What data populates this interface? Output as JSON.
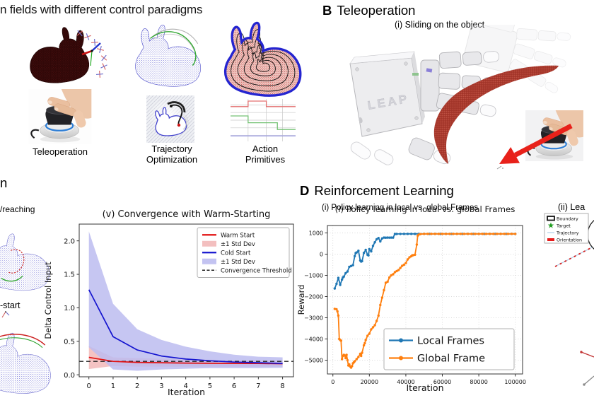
{
  "panel_a": {
    "title": "n fields with different control paradigms",
    "items": [
      {
        "name": "teleoperation",
        "label": "Teleoperation"
      },
      {
        "name": "trajectory-optimization",
        "label": "Trajectory Optimization"
      },
      {
        "name": "action-primitives",
        "label": "Action Primitives"
      }
    ]
  },
  "panel_b": {
    "letter": "B",
    "title": "Teleoperation",
    "caption": "(i) Sliding on the object",
    "device_label": "LEAP"
  },
  "panel_c": {
    "heading_fragment": "n",
    "caption_fragment": "/reaching",
    "warm_start_fragment": "-start"
  },
  "panel_d": {
    "letter": "D",
    "title": "Reinforcement Learning",
    "caption": "(i) Policy learning in local vs. global Frames"
  },
  "panel_d_ii": {
    "title_fragment": "(ii) Lea",
    "legend": [
      {
        "name": "boundary",
        "label": "Boundary"
      },
      {
        "name": "target",
        "label": "Target"
      },
      {
        "name": "trajectory",
        "label": "Trajectory"
      },
      {
        "name": "orientation",
        "label": "Orientation"
      }
    ]
  },
  "colors": {
    "warm_red": "#e21212",
    "warm_band": "#f2b8b8",
    "cold_blue": "#1414cf",
    "cold_band": "#bcbcf0",
    "threshold_black": "#222222",
    "local_blue": "#1f77b4",
    "global_orange": "#ff7f0e",
    "pointcloud_blue": "#4646c8",
    "pointcloud_red": "#c03030",
    "bunny_outline_blue": "#2525d0",
    "arrow_red": "#e8211a",
    "target_green": "#1f9c1f",
    "orientation_red": "#e51c1c",
    "trajectory_lightblue": "#9dc3e0"
  },
  "chart_data": [
    {
      "id": "convergence",
      "type": "line",
      "title": "(v) Convergence with  Warm-Starting",
      "xlabel": "Iteration",
      "ylabel": "Delta Control Input",
      "xlim": [
        -0.4,
        8.45
      ],
      "ylim": [
        -0.03,
        2.25
      ],
      "x": [
        0,
        1,
        2,
        3,
        4,
        5,
        6,
        7,
        8
      ],
      "xticks": [
        0,
        1,
        2,
        3,
        4,
        5,
        6,
        7,
        8
      ],
      "xtick_labels": [
        "0",
        "1",
        "2",
        "3",
        "4",
        "5",
        "6",
        "7",
        "8"
      ],
      "yticks": [
        0,
        0.5,
        1,
        1.5,
        2
      ],
      "ytick_labels": [
        "0.0",
        "0.5",
        "1.0",
        "1.5",
        "2.0"
      ],
      "grid": false,
      "legend_position": "top-right",
      "series": [
        {
          "name": "Warm Start",
          "color": "#e21212",
          "values": [
            0.26,
            0.2,
            0.185,
            0.18,
            0.175,
            0.172,
            0.17,
            0.168,
            0.165
          ]
        },
        {
          "name": "±1 Std Dev",
          "type": "band",
          "color": "#f2b8b8",
          "upper": [
            0.43,
            0.26,
            0.25,
            0.24,
            0.23,
            0.225,
            0.22,
            0.215,
            0.21
          ],
          "lower": [
            0.085,
            0.13,
            0.12,
            0.12,
            0.12,
            0.12,
            0.12,
            0.12,
            0.12
          ]
        },
        {
          "name": "Cold Start",
          "color": "#1414cf",
          "values": [
            1.27,
            0.57,
            0.37,
            0.28,
            0.235,
            0.21,
            0.19,
            0.18,
            0.17
          ]
        },
        {
          "name": "±1 Std Dev",
          "type": "band",
          "color": "#bcbcf0",
          "upper": [
            2.14,
            1.06,
            0.68,
            0.52,
            0.42,
            0.35,
            0.3,
            0.27,
            0.26
          ],
          "lower": [
            0.41,
            0.08,
            0.06,
            0.08,
            0.09,
            0.1,
            0.1,
            0.1,
            0.105
          ]
        },
        {
          "name": "Convergence Threshold",
          "type": "hline",
          "color": "#222222",
          "value": 0.2
        }
      ]
    },
    {
      "id": "rl",
      "type": "line",
      "title": "(i) Policy learning in local vs. global Frames",
      "xlabel": "Iteration",
      "ylabel": "Reward",
      "xlim": [
        -3000,
        104000
      ],
      "ylim": [
        -5650,
        1350
      ],
      "xticks": [
        0,
        20000,
        40000,
        60000,
        80000,
        100000
      ],
      "xtick_labels": [
        "0",
        "20000",
        "40000",
        "60000",
        "80000",
        "100000"
      ],
      "yticks": [
        1000,
        0,
        -1000,
        -2000,
        -3000,
        -4000,
        -5000
      ],
      "ytick_labels": [
        "1000",
        "0",
        "−1000",
        "−2000",
        "−3000",
        "−4000",
        "−5000"
      ],
      "grid": true,
      "legend_position": "bottom-right",
      "series": [
        {
          "name": "Local Frames",
          "color": "#1f77b4",
          "marker": true,
          "x": [
            1000,
            2000,
            3000,
            4000,
            5000,
            5500,
            6000,
            7000,
            8000,
            9000,
            10000,
            11000,
            12000,
            12500,
            13000,
            14000,
            15000,
            15500,
            16000,
            17000,
            18000,
            19000,
            19500,
            20000,
            21000,
            22000,
            23000,
            24000,
            25000,
            26000,
            27000,
            28000,
            29000,
            30000,
            31000,
            32000,
            33000,
            34000,
            35000,
            37000,
            39000,
            41000,
            43000,
            45000,
            47000,
            50000,
            53000,
            56000,
            59000,
            62000,
            65000,
            68000,
            71000,
            74000,
            77000,
            80000,
            83000,
            86000,
            89000,
            92000,
            95000,
            98000,
            100000
          ],
          "values": [
            -1620,
            -1400,
            -1120,
            -1450,
            -1200,
            -1100,
            -1060,
            -900,
            -820,
            -600,
            -560,
            -520,
            -90,
            50,
            80,
            160,
            -300,
            -350,
            -330,
            60,
            200,
            -30,
            -60,
            240,
            130,
            390,
            560,
            700,
            760,
            600,
            740,
            780,
            775,
            780,
            778,
            780,
            778,
            950,
            952,
            953,
            954,
            955,
            955,
            955,
            956,
            955,
            955,
            956,
            955,
            955,
            956,
            955,
            955,
            956,
            955,
            955,
            956,
            955,
            955,
            956,
            955,
            955,
            955
          ]
        },
        {
          "name": "Global Frame",
          "color": "#ff7f0e",
          "marker": true,
          "x": [
            1000,
            2000,
            2500,
            3000,
            3500,
            4000,
            4500,
            5000,
            5500,
            6000,
            6500,
            7000,
            7500,
            8000,
            8500,
            9000,
            9500,
            10000,
            10500,
            11000,
            11500,
            12000,
            13000,
            14000,
            15000,
            15500,
            16000,
            17000,
            17500,
            18000,
            19000,
            20000,
            21000,
            22000,
            23000,
            24000,
            25000,
            26000,
            27000,
            28000,
            29000,
            30000,
            31000,
            32000,
            33000,
            34000,
            35000,
            36000,
            37000,
            38000,
            39000,
            40000,
            41000,
            42000,
            43000,
            43500,
            44000,
            45000,
            46000,
            46500,
            47000,
            48000,
            50000,
            52000,
            54000,
            56000,
            58000,
            60000,
            62000,
            64000,
            66000,
            68000,
            70000,
            72000,
            74000,
            76000,
            78000,
            80000,
            82000,
            84000,
            86000,
            88000,
            90000,
            92000,
            94000,
            96000,
            98000,
            100000
          ],
          "values": [
            -2580,
            -2600,
            -2700,
            -2900,
            -4000,
            -4050,
            -4080,
            -4950,
            -4800,
            -4750,
            -4780,
            -4900,
            -4750,
            -5000,
            -5250,
            -5200,
            -5300,
            -5350,
            -5280,
            -5150,
            -5100,
            -5050,
            -4950,
            -4850,
            -4700,
            -4800,
            -4650,
            -4300,
            -4200,
            -4050,
            -3850,
            -3750,
            -3550,
            -3450,
            -3350,
            -3150,
            -2900,
            -2400,
            -2050,
            -1700,
            -1350,
            -1300,
            -1100,
            -1000,
            -950,
            -850,
            -800,
            -750,
            -650,
            -550,
            -500,
            -420,
            -250,
            -150,
            -100,
            -60,
            -50,
            -30,
            450,
            870,
            920,
            945,
            955,
            956,
            955,
            956,
            955,
            956,
            955,
            956,
            955,
            956,
            955,
            956,
            955,
            956,
            955,
            956,
            955,
            956,
            955,
            956,
            955,
            956,
            955,
            956,
            955,
            956
          ]
        }
      ]
    },
    {
      "id": "action-primitives",
      "type": "step",
      "grid": {
        "vlines": [
          0.27,
          0.55,
          0.8
        ],
        "hlines": [
          0.14,
          0.32,
          0.5,
          0.68,
          0.86
        ]
      },
      "series": [
        {
          "name": "primitive-a",
          "color": "#e36f6f",
          "segments": [
            [
              0,
              0.27,
              0.18
            ],
            [
              0.27,
              0.55,
              0.05
            ],
            [
              0.55,
              1,
              0.18
            ]
          ]
        },
        {
          "name": "primitive-b",
          "color": "#74c274",
          "segments": [
            [
              0,
              0.27,
              0.4
            ],
            [
              0.27,
              0.72,
              0.56
            ],
            [
              0.72,
              1,
              0.72
            ]
          ]
        },
        {
          "name": "primitive-c",
          "color": "#9a9ae0",
          "segments": [
            [
              0,
              1,
              0.87
            ]
          ]
        }
      ]
    }
  ]
}
